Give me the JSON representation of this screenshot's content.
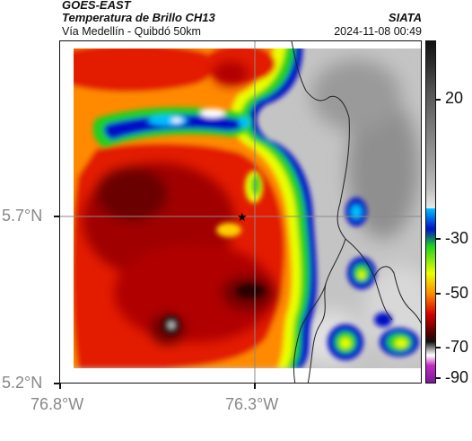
{
  "header": {
    "satellite": "GOES-EAST",
    "product": "Temperatura de Brillo CH13",
    "region": "Vía Medellín - Quibdó 50km",
    "org": "SIATA",
    "datetime": "2024-11-08 00:49"
  },
  "axes": {
    "lat_ticks": [
      "5.7°N",
      "5.2°N"
    ],
    "lon_ticks": [
      "76.8°W",
      "76.3°W"
    ]
  },
  "colorbar": {
    "ticks": [
      "20",
      "-30",
      "-50",
      "-70",
      "-90"
    ]
  },
  "marker": {
    "symbol": "★",
    "lat": 5.7,
    "lon": -76.32
  },
  "colors": {
    "cold_dark": "#4a0000",
    "red": "#d40000",
    "orange": "#ff8a00",
    "yellow": "#e9ff00",
    "green": "#1fd11f",
    "blue": "#0010c8",
    "cyan": "#00bfff",
    "land_gray": "#bdbdbd"
  }
}
